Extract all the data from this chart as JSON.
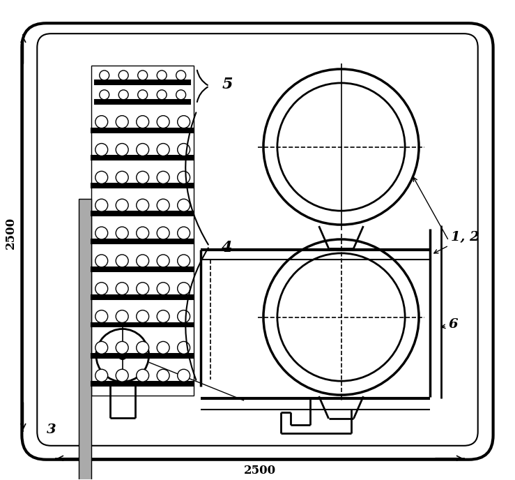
{
  "bg_color": "#ffffff",
  "line_color": "#000000",
  "figsize": [
    7.39,
    6.88
  ],
  "dpi": 100
}
